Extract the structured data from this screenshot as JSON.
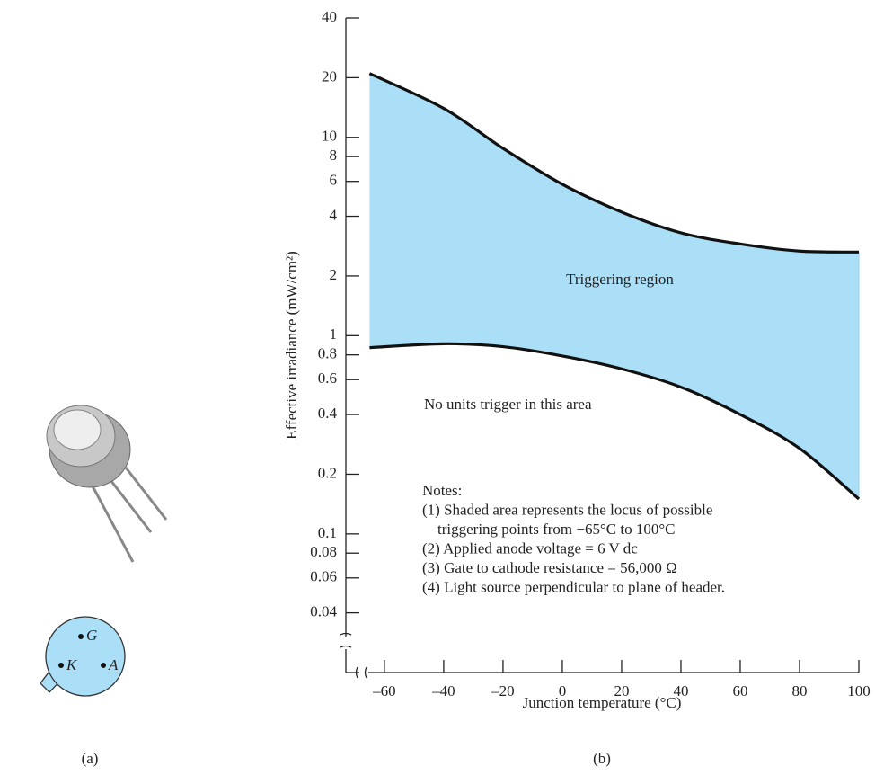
{
  "panel_a": {
    "pins": [
      "G",
      "K",
      "A"
    ],
    "caption": "(a)"
  },
  "chart_data": {
    "type": "band",
    "caption": "(b)",
    "xlabel": "Junction temperature (°C)",
    "ylabel": "Effective irradiance (mW/cm²)",
    "log_y": true,
    "xlim": [
      -73,
      100
    ],
    "xticks": [
      {
        "value": -60,
        "label": "–60"
      },
      {
        "value": -40,
        "label": "–40"
      },
      {
        "value": -20,
        "label": "–20"
      },
      0,
      20,
      40,
      60,
      80,
      100
    ],
    "ylim": [
      0.02,
      40
    ],
    "yticks": [
      40,
      20,
      10,
      8,
      6,
      4,
      2,
      1,
      0.8,
      0.6,
      0.4,
      0.2,
      0.1,
      0.08,
      0.06,
      0.04
    ],
    "fill_color": "#abdff7",
    "x": [
      -65,
      -40,
      -20,
      0,
      20,
      40,
      60,
      80,
      100
    ],
    "series": [
      {
        "color": "#111111",
        "values": [
          21,
          14,
          8.8,
          5.8,
          4.2,
          3.3,
          2.9,
          2.67,
          2.64
        ]
      },
      {
        "color": "#111111",
        "values": [
          0.87,
          0.91,
          0.88,
          0.79,
          0.68,
          0.55,
          0.4,
          0.27,
          0.15
        ]
      }
    ],
    "annotations": [
      "Triggering region",
      "No units trigger in this area"
    ],
    "notes": [
      "Notes:",
      "(1) Shaded area represents the locus of possible",
      "triggering points from −65°C to 100°C",
      "(2) Applied anode voltage = 6 V dc",
      "(3) Gate to cathode resistance = 56,000 Ω",
      "(4) Light source perpendicular to plane of header."
    ]
  }
}
